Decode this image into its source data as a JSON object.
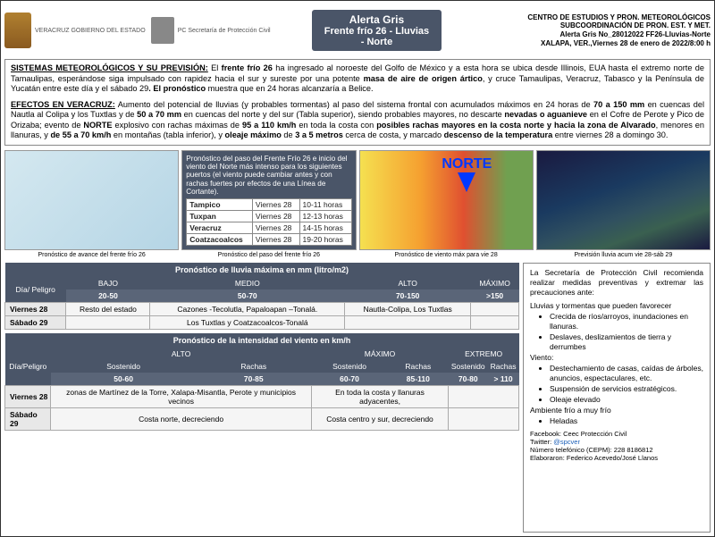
{
  "header": {
    "logo1_text": "VERACRUZ\nGOBIERNO\nDEL ESTADO",
    "logo2_text": "PC\nSecretaría de\nProtección Civil",
    "title": "Alerta Gris",
    "subtitle": "Frente frío 26 - Lluvias - Norte",
    "meta1": "CENTRO DE ESTUDIOS Y PRON. METEOROLÓGICOS",
    "meta2": "SUBCOORDINACIÓN DE PRON.  EST. Y MET.",
    "meta3": "Alerta Gris No_28012022 FF26-Lluvias-Norte",
    "meta4": "XALAPA, VER.,Viernes 28 de enero de 2022/8:00 h"
  },
  "para1": "SISTEMAS METEOROLÓGICOS Y SU PREVISIÓN: El frente frío 26 ha ingresado al noroeste del Golfo de México y a esta hora se ubica desde Illinois, EUA hasta el extremo norte de Tamaulipas, esperándose siga impulsado con rapidez hacia el sur y sureste por una potente masa de aire de origen ártico, y cruce Tamaulipas, Veracruz, Tabasco y la Península de Yucatán entre este día y el sábado 29. El pronóstico muestra que en 24 horas alcanzaría a Belice.",
  "para2": "EFECTOS EN VERACRUZ:  Aumento del potencial de lluvias (y probables tormentas) al paso del sistema frontal con acumulados máximos en 24 horas de 70 a 150 mm en cuencas del Nautla al Colipa y los Tuxtlas y de 50 a 70 mm en cuencas del norte y del sur (Tabla superior), siendo probables mayores, no descarte nevadas o aguanieve en el Cofre de Perote y Pico de Orizaba; evento de NORTE explosivo con rachas máximas de 95 a 110 km/h en toda la costa con posibles rachas mayores en la costa norte y hacia la zona de Alvarado, menores en llanuras, y de 55 a 70 km/h en montañas (tabla inferior), y oleaje máximo de 3 a 5 metros cerca de costa, y marcado descenso de la temperatura entre viernes 28 a domingo 30.",
  "maps": {
    "cap1": "Pronóstico de avance del frente frío 26",
    "cap2": "Pronóstico del paso del frente frío 26",
    "cap3": "Pronóstico de viento máx para vie 28",
    "cap4": "Previsión lluvia acum  vie 28-sáb 29",
    "norte": "NORTE",
    "ptitle": "Pronóstico del paso del Frente Frío 26 e inicio del viento del Norte más intenso  para los siguientes puertos (el viento puede cambiar antes y con rachas fuertes por efectos de una Línea de Cortante).",
    "ports": [
      {
        "n": "Tampico",
        "d": "Viernes 28",
        "h": "10-11 horas"
      },
      {
        "n": "Tuxpan",
        "d": "Viernes 28",
        "h": "12-13 horas"
      },
      {
        "n": "Veracruz",
        "d": "Viernes 28",
        "h": "14-15 horas"
      },
      {
        "n": "Coatzacoalcos",
        "d": "Viernes 28",
        "h": "19-20 horas"
      }
    ]
  },
  "rain": {
    "title": "Pronóstico de lluvia máxima en mm (litro/m2)",
    "hcol": "Día/ Peligro",
    "levels": [
      "BAJO",
      "MEDIO",
      "ALTO",
      "MÁXIMO"
    ],
    "ranges": [
      "20-50",
      "50-70",
      "70-150",
      ">150"
    ],
    "rows": [
      {
        "d": "Viernes 28",
        "v": [
          "Resto del estado",
          "Cazones -Tecolutla, Papaloapan –Tonalá.",
          "Nautla-Colipa, Los Tuxtlas",
          ""
        ]
      },
      {
        "d": "Sábado 29",
        "v": [
          "",
          "Los Tuxtlas y Coatzacoalcos-Tonalá",
          "",
          ""
        ]
      }
    ]
  },
  "wind": {
    "title": "Pronóstico de la intensidad del viento en km/h",
    "hcol": "Día/Peligro",
    "levels": [
      "ALTO",
      "MÁXIMO",
      "EXTREMO"
    ],
    "sub": [
      "Sostenido",
      "Rachas",
      "Sostenido",
      "Rachas",
      "Sostenido",
      "Rachas"
    ],
    "ranges": [
      "50-60",
      "70-85",
      "60-70",
      "85-110",
      "70-80",
      "> 110"
    ],
    "rows": [
      {
        "d": "Viernes 28",
        "v": [
          "zonas de Martínez de la Torre, Xalapa-Misantla, Perote y municipios vecinos",
          "En toda la costa y llanuras adyacentes,",
          ""
        ]
      },
      {
        "d": "Sábado 29",
        "v": [
          "Costa norte, decreciendo",
          "Costa  centro y sur, decreciendo",
          ""
        ]
      }
    ]
  },
  "side": {
    "intro": "La Secretaría de Protección Civil recomienda realizar medidas preventivas y extremar las precauciones ante:",
    "g1": "Lluvias y tormentas que pueden favorecer",
    "g1items": [
      "Crecida de ríos/arroyos, inundaciones en llanuras.",
      "Deslaves, deslizamientos de tierra y derrumbes"
    ],
    "g2": "Viento:",
    "g2items": [
      "Destechamiento de casas, caídas de árboles, anuncios, espectaculares, etc.",
      "Suspensión de servicios estratégicos.",
      "Oleaje elevado"
    ],
    "g3": "Ambiente frío a muy frío",
    "g3items": [
      "Heladas"
    ]
  },
  "foot": {
    "fb": "Facebook: Ceec Protección Civil",
    "tw": "Twitter: @spcver",
    "tel": "Número telefónico (CEPM):  228 8186812",
    "el": "Elaboraron: Federico Acevedo/José Llanos"
  }
}
